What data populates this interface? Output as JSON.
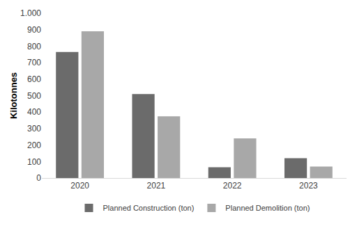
{
  "chart_data": {
    "type": "bar",
    "y_label": "Kilotonnes",
    "categories": [
      "2020",
      "2021",
      "2022",
      "2023"
    ],
    "series": [
      {
        "name": "Planned Construction (ton)",
        "color": "#6b6b6b",
        "values": [
          765,
          510,
          65,
          120
        ]
      },
      {
        "name": "Planned Demolition (ton)",
        "color": "#a8a8a8",
        "values": [
          890,
          375,
          240,
          70
        ]
      }
    ],
    "ylim": [
      0,
      1000
    ],
    "yticks": [
      0,
      100,
      200,
      300,
      400,
      500,
      600,
      700,
      800,
      900,
      {
        "value": 1000,
        "label": "1.000"
      }
    ],
    "grid": false,
    "legend": "bottom"
  }
}
